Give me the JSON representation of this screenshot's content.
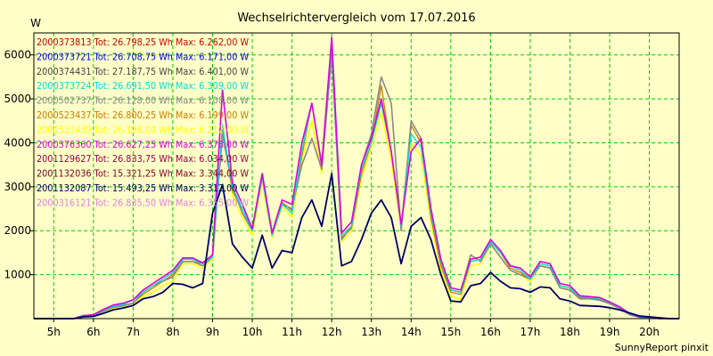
{
  "chart_data": {
    "type": "line",
    "title": "Wechselrichtervergleich vom 17.07.2016",
    "ylabel": "W",
    "xlabel": "",
    "footer": "SunnyReport pinxit",
    "background": "#ffffc8",
    "grid": true,
    "grid_color": "#00cc00",
    "legend_placement": "top-left",
    "xlim": [
      4.5,
      20.75
    ],
    "ylim": [
      0,
      6500
    ],
    "x_ticks": [
      5,
      6,
      7,
      8,
      9,
      10,
      11,
      12,
      13,
      14,
      15,
      16,
      17,
      18,
      19,
      20
    ],
    "x_tick_labels": [
      "5h",
      "6h",
      "7h",
      "8h",
      "9h",
      "10h",
      "11h",
      "12h",
      "13h",
      "14h",
      "15h",
      "16h",
      "17h",
      "18h",
      "19h",
      "20h"
    ],
    "y_ticks": [
      1000,
      2000,
      3000,
      4000,
      5000,
      6000
    ],
    "y_tick_labels": [
      "1000",
      "2000",
      "3000",
      "4000",
      "5000",
      "6000"
    ],
    "legend": [
      {
        "text": "2000373813 Tot: 26.798,25 Wh Max: 6.262,00 W",
        "color": "#cc0000"
      },
      {
        "text": "2000373721 Tot: 26.708,75 Wh Max: 6.171,00 W",
        "color": "#0000ee"
      },
      {
        "text": "2000374431 Tot: 27.187,75 Wh Max: 6.401,00 W",
        "color": "#444444"
      },
      {
        "text": "2000373724 Tot: 26.691,50 Wh Max: 6.309,00 W",
        "color": "#00dddd"
      },
      {
        "text": "2000502737 Tot: 26.128,00 Wh Max: 6.108,00 W",
        "color": "#888888"
      },
      {
        "text": "2000523437 Tot: 26.800,25 Wh Max: 6.199,00 W",
        "color": "#cc7a00"
      },
      {
        "text": "2000523439 Tot: 26.198,00 Wh Max: 6.212,00 W",
        "color": "#ffff00"
      },
      {
        "text": "2000376360 Tot: 26.627,25 Wh Max: 6.378,00 W",
        "color": "#dd00dd"
      },
      {
        "text": "2001129627 Tot: 26.833,75 Wh Max: 6.034,00 W",
        "color": "#990044"
      },
      {
        "text": "2001132036 Tot: 15.321,25 Wh Max: 3.344,00 W",
        "color": "#770022"
      },
      {
        "text": "2001132087 Tot: 15.493,25 Wh Max: 3.312,00 W",
        "color": "#000066"
      },
      {
        "text": "2000316121 Tot: 26.835,50 Wh Max: 6.355,00 W",
        "color": "#e080e0"
      }
    ],
    "x": [
      4.5,
      5.0,
      5.25,
      5.5,
      5.75,
      6.0,
      6.25,
      6.5,
      6.75,
      7.0,
      7.25,
      7.5,
      7.75,
      8.0,
      8.25,
      8.5,
      8.75,
      9.0,
      9.25,
      9.5,
      9.75,
      10.0,
      10.25,
      10.5,
      10.75,
      11.0,
      11.25,
      11.5,
      11.75,
      12.0,
      12.25,
      12.5,
      12.75,
      13.0,
      13.25,
      13.5,
      13.75,
      14.0,
      14.25,
      14.5,
      14.75,
      15.0,
      15.25,
      15.5,
      15.75,
      16.0,
      16.25,
      16.5,
      16.75,
      17.0,
      17.25,
      17.5,
      17.75,
      18.0,
      18.25,
      18.5,
      18.75,
      19.0,
      19.25,
      19.5,
      19.75,
      20.0,
      20.25,
      20.5,
      20.75
    ],
    "series": [
      {
        "color": "#ffff00",
        "width": 1.5,
        "values": [
          0,
          0,
          0,
          0,
          50,
          60,
          160,
          230,
          260,
          300,
          500,
          600,
          750,
          850,
          1250,
          1250,
          1150,
          1350,
          4400,
          2800,
          2300,
          1900,
          3100,
          1850,
          2550,
          2300,
          3600,
          4500,
          3300,
          6200,
          1750,
          2000,
          3200,
          3900,
          4700,
          3600,
          2050,
          4000,
          3700,
          2200,
          1100,
          500,
          450,
          1200,
          1250,
          1700,
          1400,
          1100,
          1000,
          850,
          1200,
          1150,
          700,
          650,
          450,
          450,
          440,
          350,
          250,
          100,
          30,
          20,
          0,
          0,
          0
        ]
      },
      {
        "color": "#cc7a00",
        "width": 1.3,
        "values": [
          0,
          0,
          0,
          0,
          60,
          70,
          180,
          270,
          300,
          350,
          550,
          700,
          850,
          1000,
          1300,
          1300,
          1250,
          1450,
          4300,
          2900,
          2500,
          2000,
          3200,
          1900,
          2650,
          2450,
          3700,
          4900,
          3450,
          6200,
          1850,
          2050,
          3300,
          4000,
          5300,
          3800,
          2100,
          4400,
          4000,
          2300,
          1200,
          600,
          550,
          1300,
          1350,
          1750,
          1500,
          1150,
          1050,
          900,
          1250,
          1200,
          750,
          700,
          480,
          470,
          450,
          360,
          260,
          110,
          35,
          25,
          0,
          0,
          0
        ]
      },
      {
        "color": "#888888",
        "width": 1.6,
        "values": [
          0,
          0,
          0,
          0,
          50,
          60,
          170,
          260,
          290,
          350,
          600,
          750,
          850,
          950,
          1300,
          1300,
          1200,
          1400,
          4200,
          3000,
          2400,
          2000,
          3300,
          1900,
          2600,
          2500,
          3500,
          4100,
          3400,
          6000,
          1800,
          2100,
          3500,
          4200,
          5500,
          4900,
          2000,
          4500,
          4100,
          2500,
          1300,
          650,
          600,
          1450,
          1300,
          1700,
          1400,
          1100,
          1000,
          900,
          1200,
          1150,
          700,
          650,
          450,
          450,
          420,
          340,
          230,
          90,
          30,
          20,
          0,
          0,
          0
        ]
      },
      {
        "color": "#00dddd",
        "width": 1.3,
        "values": [
          0,
          0,
          0,
          0,
          60,
          80,
          200,
          280,
          320,
          420,
          600,
          750,
          900,
          1050,
          1350,
          1350,
          1250,
          1400,
          4400,
          3000,
          2500,
          2000,
          3200,
          1900,
          2600,
          2400,
          3800,
          4900,
          3500,
          6300,
          1900,
          2100,
          3400,
          4000,
          4900,
          3800,
          2100,
          4200,
          3900,
          2400,
          1300,
          650,
          600,
          1300,
          1350,
          1750,
          1500,
          1200,
          1100,
          900,
          1250,
          1200,
          750,
          700,
          500,
          480,
          460,
          370,
          260,
          110,
          35,
          25,
          0,
          0,
          0
        ]
      },
      {
        "color": "#dd00dd",
        "width": 1.6,
        "values": [
          0,
          0,
          0,
          0,
          70,
          90,
          210,
          310,
          350,
          430,
          650,
          800,
          950,
          1100,
          1380,
          1380,
          1270,
          1450,
          5200,
          3100,
          2600,
          2050,
          3300,
          1950,
          2700,
          2600,
          4000,
          4900,
          3500,
          6400,
          1950,
          2200,
          3500,
          4100,
          5000,
          3800,
          2150,
          3800,
          4100,
          2500,
          1350,
          700,
          650,
          1350,
          1400,
          1800,
          1550,
          1200,
          1150,
          950,
          1300,
          1250,
          800,
          750,
          520,
          500,
          480,
          380,
          270,
          120,
          40,
          30,
          0,
          0,
          0
        ]
      },
      {
        "color": "#000066",
        "width": 1.8,
        "values": [
          0,
          0,
          0,
          0,
          40,
          50,
          120,
          200,
          240,
          300,
          450,
          500,
          600,
          800,
          780,
          700,
          800,
          2400,
          3050,
          1700,
          1400,
          1150,
          1900,
          1150,
          1550,
          1500,
          2300,
          2700,
          2100,
          3300,
          1200,
          1300,
          1800,
          2400,
          2700,
          2300,
          1250,
          2100,
          2300,
          1800,
          1000,
          400,
          380,
          750,
          800,
          1050,
          850,
          700,
          680,
          600,
          720,
          700,
          450,
          400,
          300,
          290,
          280,
          250,
          200,
          130,
          60,
          40,
          20,
          0,
          0
        ]
      }
    ]
  }
}
